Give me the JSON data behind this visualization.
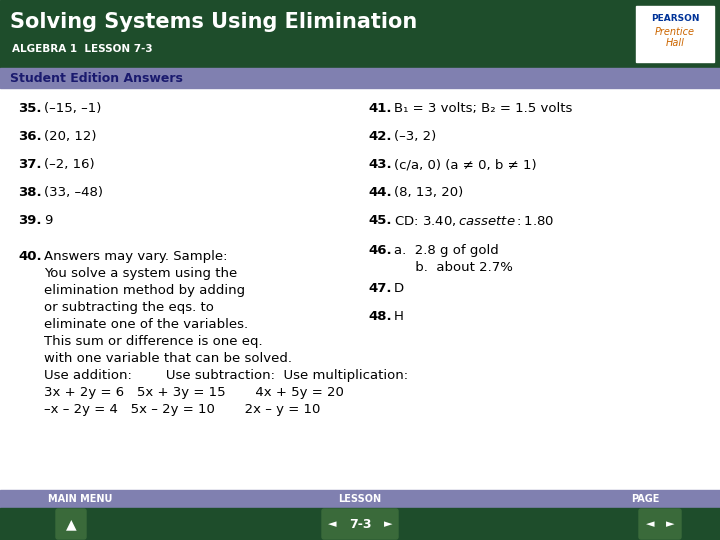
{
  "title": "Solving Systems Using Elimination",
  "subtitle": "ALGEBRA 1  LESSON 7-3",
  "section_label": "Student Edition Answers",
  "header_bg": "#1e4d2b",
  "header_text_color": "#ffffff",
  "section_bg": "#8080b0",
  "section_text_color": "#1a1a6e",
  "body_bg": "#ffffff",
  "body_text_color": "#000000",
  "footer_label_bg": "#8080b0",
  "footer_nav_bg": "#1e4d2b",
  "footer_labels": [
    "MAIN MENU",
    "LESSON",
    "PAGE"
  ],
  "footer_lesson": "7-3",
  "pearson_bg": "#ffffff",
  "pearson_border": "#cccccc",
  "left_items": [
    {
      "num": "35.",
      "text": "(–15, –1)",
      "extra_gap": false
    },
    {
      "num": "36.",
      "text": "(20, 12)",
      "extra_gap": false
    },
    {
      "num": "37.",
      "text": "(–2, 16)",
      "extra_gap": false
    },
    {
      "num": "38.",
      "text": "(33, –48)",
      "extra_gap": false
    },
    {
      "num": "39.",
      "text": "9",
      "extra_gap": false
    },
    {
      "num": "40.",
      "text": "Answers may vary. Sample:\nYou solve a system using the\nelimination method by adding\nor subtracting the eqs. to\neliminate one of the variables.\nThis sum or difference is one eq.\nwith one variable that can be solved.\nUse addition:        Use subtraction:  Use multiplication:\n3x + 2y = 6   5x + 3y = 15       4x + 5y = 20\n–x – 2y = 4   5x – 2y = 10       2x – y = 10",
      "extra_gap": true
    }
  ],
  "right_items": [
    {
      "num": "41.",
      "text": "B₁ = 3 volts; B₂ = 1.5 volts",
      "extra_gap": false
    },
    {
      "num": "42.",
      "text": "(–3, 2)",
      "extra_gap": false
    },
    {
      "num": "43.",
      "text": "(c/a, 0) (a ≠ 0, b ≠ 1)",
      "extra_gap": false
    },
    {
      "num": "44.",
      "text": "(8, 13, 20)",
      "extra_gap": false
    },
    {
      "num": "45.",
      "text": "CD: $3.40, cassette: $1.80",
      "extra_gap": false
    },
    {
      "num": "46.",
      "text": "a.  2.8 g of gold\n     b.  about 2.7%",
      "extra_gap": true
    },
    {
      "num": "47.",
      "text": "D",
      "extra_gap": false
    },
    {
      "num": "48.",
      "text": "H",
      "extra_gap": false
    }
  ]
}
